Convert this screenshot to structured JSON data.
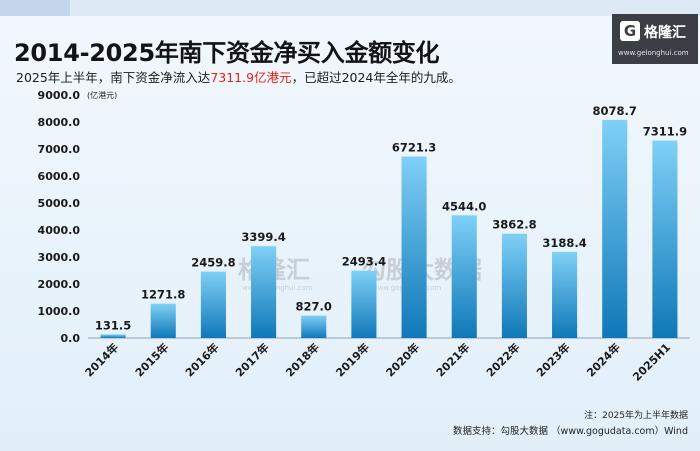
{
  "header": {
    "title": "2014-2025年南下资金净买入金额变化",
    "subtitle_pre": "2025年上半年，南下资金净流入达",
    "subtitle_highlight": "7311.9亿港元",
    "subtitle_post": "，已超过2024年全年的九成。",
    "highlight_color": "#e0221c"
  },
  "logo": {
    "mark": "G",
    "name": "格隆汇",
    "url": "www.gelonghui.com"
  },
  "watermark": {
    "text_left": "格隆汇",
    "text_right": "勾股大数据",
    "url_left": "www.gelonghui.com",
    "url_right": "www.gogudata.com"
  },
  "chart_data": {
    "type": "bar",
    "categories": [
      "2014年",
      "2015年",
      "2016年",
      "2017年",
      "2018年",
      "2019年",
      "2020年",
      "2021年",
      "2022年",
      "2023年",
      "2024年",
      "2025H1"
    ],
    "values": [
      131.5,
      1271.8,
      2459.8,
      3399.4,
      827.0,
      2493.4,
      6721.3,
      4544.0,
      3862.8,
      3188.4,
      8078.7,
      7311.9
    ],
    "value_labels": [
      "131.5",
      "1271.8",
      "2459.8",
      "3399.4",
      "827.0",
      "2493.4",
      "6721.3",
      "4544.0",
      "3862.8",
      "3188.4",
      "8078.7",
      "7311.9"
    ],
    "yticks": [
      "0.0",
      "1000.0",
      "2000.0",
      "3000.0",
      "4000.0",
      "5000.0",
      "6000.0",
      "7000.0",
      "8000.0",
      "9000.0"
    ],
    "unit": "(亿港元)",
    "ylim": [
      0,
      9000
    ],
    "grid": false,
    "bar_color_top": "#7fd0f6",
    "bar_color_bottom": "#0f78b8"
  },
  "footer": {
    "note": "注：2025年为上半年数据",
    "source": "数据支持：勾股大数据 （www.gogudata.com）Wind"
  }
}
